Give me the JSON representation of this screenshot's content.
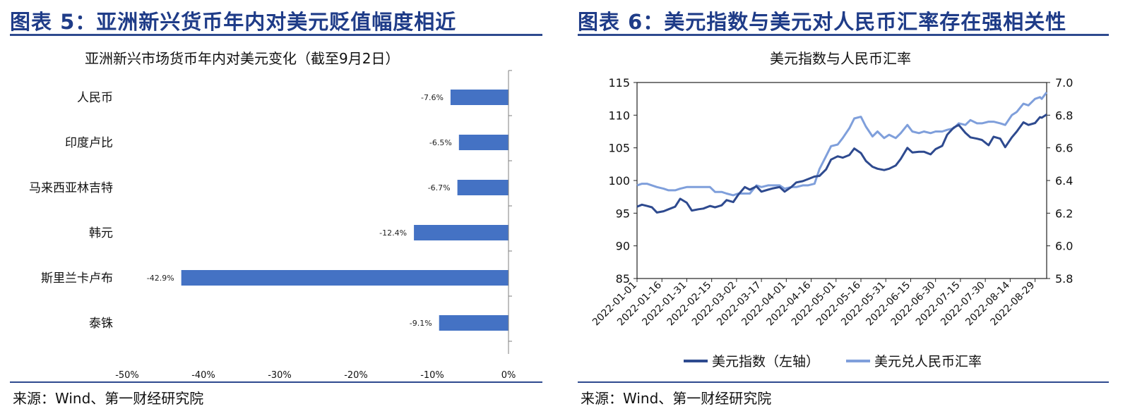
{
  "left": {
    "panel_title": "图表 5：亚洲新兴货币年内对美元贬值幅度相近",
    "source": "来源：Wind、第一财经研究院"
  },
  "right": {
    "panel_title": "图表 6：美元指数与美元对人民币汇率存在强相关性",
    "source": "来源：Wind、第一财经研究院"
  },
  "chart_data": [
    {
      "type": "bar",
      "orientation": "horizontal",
      "title": "亚洲新兴市场货币年内对美元变化（截至9月2日）",
      "categories": [
        "人民币",
        "印度卢比",
        "马来西亚林吉特",
        "韩元",
        "斯里兰卡卢布",
        "泰铢"
      ],
      "values": [
        -7.6,
        -6.5,
        -6.7,
        -12.4,
        -42.9,
        -9.1
      ],
      "value_labels": [
        "-7.6%",
        "-6.5%",
        "-6.7%",
        "-12.4%",
        "-42.9%",
        "-9.1%"
      ],
      "xlim": [
        -50,
        0
      ],
      "xticks": [
        "-50%",
        "-40%",
        "-30%",
        "-20%",
        "-10%",
        "0%"
      ],
      "color": "#4472c4"
    },
    {
      "type": "line",
      "title": "美元指数与人民币汇率",
      "x_dates": [
        "2022-01-01",
        "2022-01-16",
        "2022-01-31",
        "2022-02-15",
        "2022-03-02",
        "2022-03-17",
        "2022-04-01",
        "2022-04-16",
        "2022-05-01",
        "2022-05-16",
        "2022-05-31",
        "2022-06-15",
        "2022-06-30",
        "2022-07-15",
        "2022-07-30",
        "2022-08-14",
        "2022-08-29"
      ],
      "x_range": [
        "2022-01-01",
        "2022-09-05"
      ],
      "y_left": {
        "range": [
          85,
          115
        ],
        "ticks": [
          "85",
          "90",
          "95",
          "100",
          "105",
          "110",
          "115"
        ]
      },
      "y_right": {
        "range": [
          5.8,
          7.0
        ],
        "ticks": [
          "5.8",
          "6.0",
          "6.2",
          "6.4",
          "6.6",
          "6.8",
          "7.0"
        ]
      },
      "series": [
        {
          "name": "美元指数（左轴）",
          "axis": "left",
          "color": "#2e4a8f",
          "points": [
            [
              "2022-01-01",
              96.0
            ],
            [
              "2022-01-04",
              96.3
            ],
            [
              "2022-01-07",
              96.1
            ],
            [
              "2022-01-10",
              95.9
            ],
            [
              "2022-01-13",
              95.1
            ],
            [
              "2022-01-17",
              95.3
            ],
            [
              "2022-01-20",
              95.6
            ],
            [
              "2022-01-24",
              96.0
            ],
            [
              "2022-01-27",
              97.2
            ],
            [
              "2022-01-31",
              96.6
            ],
            [
              "2022-02-03",
              95.4
            ],
            [
              "2022-02-07",
              95.6
            ],
            [
              "2022-02-10",
              95.7
            ],
            [
              "2022-02-14",
              96.1
            ],
            [
              "2022-02-17",
              95.9
            ],
            [
              "2022-02-21",
              96.2
            ],
            [
              "2022-02-24",
              97.0
            ],
            [
              "2022-02-28",
              96.7
            ],
            [
              "2022-03-03",
              97.8
            ],
            [
              "2022-03-07",
              99.0
            ],
            [
              "2022-03-10",
              98.6
            ],
            [
              "2022-03-14",
              99.1
            ],
            [
              "2022-03-17",
              98.3
            ],
            [
              "2022-03-21",
              98.6
            ],
            [
              "2022-03-24",
              98.8
            ],
            [
              "2022-03-28",
              99.0
            ],
            [
              "2022-03-31",
              98.3
            ],
            [
              "2022-04-04",
              99.0
            ],
            [
              "2022-04-07",
              99.7
            ],
            [
              "2022-04-11",
              99.9
            ],
            [
              "2022-04-14",
              100.2
            ],
            [
              "2022-04-18",
              100.6
            ],
            [
              "2022-04-21",
              100.7
            ],
            [
              "2022-04-25",
              101.7
            ],
            [
              "2022-04-28",
              103.2
            ],
            [
              "2022-05-02",
              103.7
            ],
            [
              "2022-05-05",
              103.5
            ],
            [
              "2022-05-09",
              103.9
            ],
            [
              "2022-05-12",
              104.9
            ],
            [
              "2022-05-16",
              104.2
            ],
            [
              "2022-05-19",
              103.0
            ],
            [
              "2022-05-23",
              102.1
            ],
            [
              "2022-05-26",
              101.8
            ],
            [
              "2022-05-30",
              101.6
            ],
            [
              "2022-06-02",
              101.8
            ],
            [
              "2022-06-06",
              102.3
            ],
            [
              "2022-06-09",
              103.3
            ],
            [
              "2022-06-13",
              105.0
            ],
            [
              "2022-06-16",
              104.3
            ],
            [
              "2022-06-20",
              104.4
            ],
            [
              "2022-06-23",
              104.4
            ],
            [
              "2022-06-27",
              104.0
            ],
            [
              "2022-06-30",
              104.8
            ],
            [
              "2022-07-04",
              105.3
            ],
            [
              "2022-07-07",
              107.0
            ],
            [
              "2022-07-11",
              108.1
            ],
            [
              "2022-07-14",
              108.5
            ],
            [
              "2022-07-18",
              107.3
            ],
            [
              "2022-07-21",
              106.6
            ],
            [
              "2022-07-25",
              106.4
            ],
            [
              "2022-07-28",
              106.2
            ],
            [
              "2022-08-01",
              105.4
            ],
            [
              "2022-08-04",
              106.7
            ],
            [
              "2022-08-08",
              106.4
            ],
            [
              "2022-08-11",
              105.1
            ],
            [
              "2022-08-15",
              106.6
            ],
            [
              "2022-08-18",
              107.5
            ],
            [
              "2022-08-22",
              108.9
            ],
            [
              "2022-08-25",
              108.5
            ],
            [
              "2022-08-29",
              108.8
            ],
            [
              "2022-09-01",
              109.7
            ],
            [
              "2022-09-02",
              109.6
            ],
            [
              "2022-09-05",
              110.1
            ]
          ]
        },
        {
          "name": "美元兑人民币汇率",
          "axis": "right",
          "color": "#7f9fdb",
          "points": [
            [
              "2022-01-01",
              6.37
            ],
            [
              "2022-01-04",
              6.38
            ],
            [
              "2022-01-07",
              6.38
            ],
            [
              "2022-01-10",
              6.37
            ],
            [
              "2022-01-13",
              6.36
            ],
            [
              "2022-01-17",
              6.35
            ],
            [
              "2022-01-20",
              6.34
            ],
            [
              "2022-01-24",
              6.34
            ],
            [
              "2022-01-27",
              6.35
            ],
            [
              "2022-01-31",
              6.36
            ],
            [
              "2022-02-03",
              6.36
            ],
            [
              "2022-02-07",
              6.36
            ],
            [
              "2022-02-10",
              6.36
            ],
            [
              "2022-02-14",
              6.36
            ],
            [
              "2022-02-17",
              6.33
            ],
            [
              "2022-02-21",
              6.33
            ],
            [
              "2022-02-24",
              6.32
            ],
            [
              "2022-02-28",
              6.31
            ],
            [
              "2022-03-03",
              6.32
            ],
            [
              "2022-03-07",
              6.32
            ],
            [
              "2022-03-10",
              6.32
            ],
            [
              "2022-03-14",
              6.37
            ],
            [
              "2022-03-17",
              6.36
            ],
            [
              "2022-03-21",
              6.37
            ],
            [
              "2022-03-24",
              6.37
            ],
            [
              "2022-03-28",
              6.37
            ],
            [
              "2022-03-31",
              6.35
            ],
            [
              "2022-04-04",
              6.36
            ],
            [
              "2022-04-07",
              6.36
            ],
            [
              "2022-04-11",
              6.37
            ],
            [
              "2022-04-14",
              6.37
            ],
            [
              "2022-04-18",
              6.38
            ],
            [
              "2022-04-21",
              6.47
            ],
            [
              "2022-04-25",
              6.55
            ],
            [
              "2022-04-28",
              6.61
            ],
            [
              "2022-05-02",
              6.62
            ],
            [
              "2022-05-05",
              6.66
            ],
            [
              "2022-05-09",
              6.72
            ],
            [
              "2022-05-12",
              6.78
            ],
            [
              "2022-05-16",
              6.79
            ],
            [
              "2022-05-19",
              6.73
            ],
            [
              "2022-05-23",
              6.67
            ],
            [
              "2022-05-26",
              6.7
            ],
            [
              "2022-05-30",
              6.66
            ],
            [
              "2022-06-02",
              6.68
            ],
            [
              "2022-06-06",
              6.66
            ],
            [
              "2022-06-09",
              6.69
            ],
            [
              "2022-06-13",
              6.74
            ],
            [
              "2022-06-16",
              6.7
            ],
            [
              "2022-06-20",
              6.69
            ],
            [
              "2022-06-23",
              6.7
            ],
            [
              "2022-06-27",
              6.69
            ],
            [
              "2022-06-30",
              6.7
            ],
            [
              "2022-07-04",
              6.7
            ],
            [
              "2022-07-07",
              6.71
            ],
            [
              "2022-07-11",
              6.72
            ],
            [
              "2022-07-14",
              6.75
            ],
            [
              "2022-07-18",
              6.74
            ],
            [
              "2022-07-21",
              6.77
            ],
            [
              "2022-07-25",
              6.75
            ],
            [
              "2022-07-28",
              6.75
            ],
            [
              "2022-08-01",
              6.76
            ],
            [
              "2022-08-04",
              6.76
            ],
            [
              "2022-08-08",
              6.75
            ],
            [
              "2022-08-11",
              6.74
            ],
            [
              "2022-08-15",
              6.8
            ],
            [
              "2022-08-18",
              6.82
            ],
            [
              "2022-08-22",
              6.87
            ],
            [
              "2022-08-25",
              6.86
            ],
            [
              "2022-08-29",
              6.9
            ],
            [
              "2022-09-01",
              6.91
            ],
            [
              "2022-09-02",
              6.9
            ],
            [
              "2022-09-05",
              6.94
            ]
          ]
        }
      ],
      "legend_position": "bottom"
    }
  ]
}
